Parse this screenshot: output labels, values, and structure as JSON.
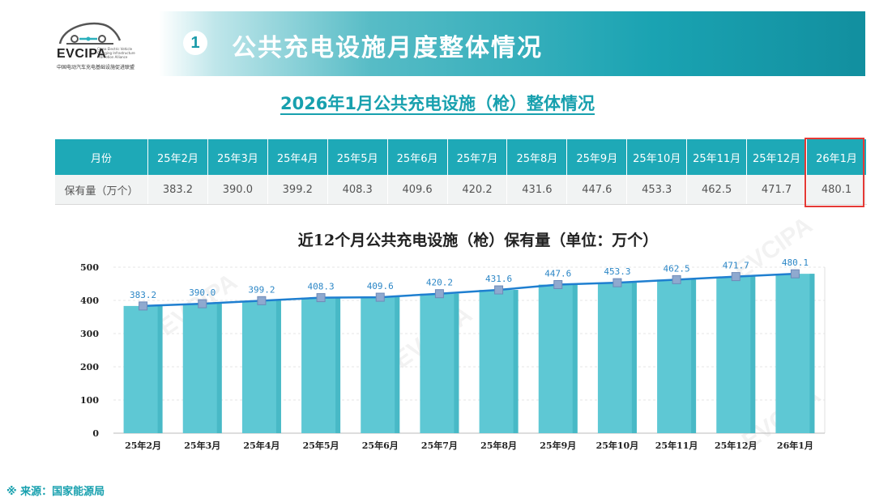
{
  "logo": {
    "name": "EVCIPA",
    "subtitle": "中国电动汽车充电基础设施促进联盟",
    "english": "China Electric Vehicle Charging Infrastructure Promotion Alliance"
  },
  "header": {
    "badge": "1",
    "title": "公共充电设施月度整体情况"
  },
  "subtitle": "2026年1月公共充电设施（枪）整体情况",
  "table": {
    "header_label": "月份",
    "row_label": "保有量（万个）",
    "months": [
      "25年2月",
      "25年3月",
      "25年4月",
      "25年5月",
      "25年6月",
      "25年7月",
      "25年8月",
      "25年9月",
      "25年10月",
      "25年11月",
      "25年12月",
      "26年1月"
    ],
    "values": [
      "383.2",
      "390.0",
      "399.2",
      "408.3",
      "409.6",
      "420.2",
      "431.6",
      "447.6",
      "453.3",
      "462.5",
      "471.7",
      "480.1"
    ]
  },
  "chart_data": {
    "type": "bar",
    "title": "近12个月公共充电设施（枪）保有量（单位：万个）",
    "categories": [
      "25年2月",
      "25年3月",
      "25年4月",
      "25年5月",
      "25年6月",
      "25年7月",
      "25年8月",
      "25年9月",
      "25年10月",
      "25年11月",
      "25年12月",
      "26年1月"
    ],
    "values": [
      383.2,
      390.0,
      399.2,
      408.3,
      409.6,
      420.2,
      431.6,
      447.6,
      453.3,
      462.5,
      471.7,
      480.1
    ],
    "value_labels": [
      "383.2",
      "390.0",
      "399.2",
      "408.3",
      "409.6",
      "420.2",
      "431.6",
      "447.6",
      "453.3",
      "462.5",
      "471.7",
      "480.1"
    ],
    "overlay": "line",
    "ylim": [
      0,
      500
    ],
    "yticks": [
      "0",
      "100",
      "200",
      "300",
      "400",
      "500"
    ],
    "grid": true,
    "colors": {
      "bar": "#5ec8d4",
      "bar_dark": "#3eb2c0",
      "line": "#1f7fd0",
      "marker": "#8fa9cf",
      "label": "#2b86c6"
    }
  },
  "source": "※ 来源：国家能源局",
  "watermark": "EVCIPA"
}
